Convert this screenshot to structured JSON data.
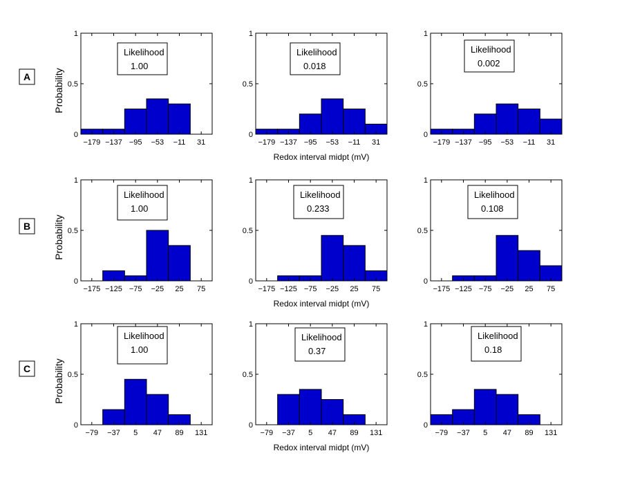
{
  "chart_data": [
    {
      "type": "bar",
      "row": "A",
      "col": 0,
      "categories": [
        "-179",
        "-137",
        "-95",
        "-53",
        "-11",
        "31"
      ],
      "x": [
        -179,
        -137,
        -95,
        -53,
        -11,
        31
      ],
      "bin_width": 42,
      "xlim": [
        -200,
        52
      ],
      "values": [
        0.05,
        0.05,
        0.25,
        0.35,
        0.3,
        0
      ],
      "likelihood_label": "Likelihood",
      "likelihood": "1.00",
      "xlabel": "",
      "ylabel": "Probability",
      "ylim": [
        0,
        1
      ],
      "yticks": [
        "0",
        "0.5",
        "1"
      ]
    },
    {
      "type": "bar",
      "row": "A",
      "col": 1,
      "categories": [
        "-179",
        "-137",
        "-95",
        "-53",
        "-11",
        "31"
      ],
      "x": [
        -179,
        -137,
        -95,
        -53,
        -11,
        31
      ],
      "bin_width": 42,
      "xlim": [
        -200,
        52
      ],
      "values": [
        0.05,
        0.05,
        0.2,
        0.35,
        0.25,
        0.1
      ],
      "likelihood_label": "Likelihood",
      "likelihood": "0.018",
      "xlabel": "Redox interval midpt (mV)",
      "ylabel": "",
      "ylim": [
        0,
        1
      ],
      "yticks": [
        "0",
        "0.5",
        "1"
      ]
    },
    {
      "type": "bar",
      "row": "A",
      "col": 2,
      "categories": [
        "-179",
        "-137",
        "-95",
        "-53",
        "-11",
        "31"
      ],
      "x": [
        -179,
        -137,
        -95,
        -53,
        -11,
        31
      ],
      "bin_width": 42,
      "xlim": [
        -200,
        52
      ],
      "values": [
        0.05,
        0.05,
        0.2,
        0.3,
        0.25,
        0.15
      ],
      "likelihood_label": "Likelihood",
      "likelihood": "0.002",
      "xlabel": "",
      "ylabel": "",
      "ylim": [
        0,
        1
      ],
      "yticks": [
        "0",
        "0.5",
        "1"
      ]
    },
    {
      "type": "bar",
      "row": "B",
      "col": 0,
      "categories": [
        "-175",
        "-125",
        "-75",
        "-25",
        "25",
        "75"
      ],
      "x": [
        -175,
        -125,
        -75,
        -25,
        25,
        75
      ],
      "bin_width": 50,
      "xlim": [
        -200,
        100
      ],
      "values": [
        0,
        0.1,
        0.05,
        0.5,
        0.35,
        0
      ],
      "likelihood_label": "Likelihood",
      "likelihood": "1.00",
      "xlabel": "",
      "ylabel": "Probability",
      "ylim": [
        0,
        1
      ],
      "yticks": [
        "0",
        "0.5",
        "1"
      ]
    },
    {
      "type": "bar",
      "row": "B",
      "col": 1,
      "categories": [
        "-175",
        "-125",
        "-75",
        "-25",
        "25",
        "75"
      ],
      "x": [
        -175,
        -125,
        -75,
        -25,
        25,
        75
      ],
      "bin_width": 50,
      "xlim": [
        -200,
        100
      ],
      "values": [
        0,
        0.05,
        0.05,
        0.45,
        0.35,
        0.1
      ],
      "likelihood_label": "Likelihood",
      "likelihood": "0.233",
      "xlabel": "Redox interval midpt (mV)",
      "ylabel": "",
      "ylim": [
        0,
        1
      ],
      "yticks": [
        "0",
        "0.5",
        "1"
      ]
    },
    {
      "type": "bar",
      "row": "B",
      "col": 2,
      "categories": [
        "-175",
        "-125",
        "-75",
        "-25",
        "25",
        "75"
      ],
      "x": [
        -175,
        -125,
        -75,
        -25,
        25,
        75
      ],
      "bin_width": 50,
      "xlim": [
        -200,
        100
      ],
      "values": [
        0,
        0.05,
        0.05,
        0.45,
        0.3,
        0.15
      ],
      "likelihood_label": "Likelihood",
      "likelihood": "0.108",
      "xlabel": "",
      "ylabel": "",
      "ylim": [
        0,
        1
      ],
      "yticks": [
        "0",
        "0.5",
        "1"
      ]
    },
    {
      "type": "bar",
      "row": "C",
      "col": 0,
      "categories": [
        "-79",
        "-37",
        "5",
        "47",
        "89",
        "131"
      ],
      "x": [
        -79,
        -37,
        5,
        47,
        89,
        131
      ],
      "bin_width": 42,
      "xlim": [
        -100,
        152
      ],
      "values": [
        0,
        0.15,
        0.45,
        0.3,
        0.1,
        0
      ],
      "likelihood_label": "Likelihood",
      "likelihood": "1.00",
      "xlabel": "",
      "ylabel": "Probability",
      "ylim": [
        0,
        1
      ],
      "yticks": [
        "0",
        "0.5",
        "1"
      ]
    },
    {
      "type": "bar",
      "row": "C",
      "col": 1,
      "categories": [
        "-79",
        "-37",
        "5",
        "47",
        "89",
        "131"
      ],
      "x": [
        -79,
        -37,
        5,
        47,
        89,
        131
      ],
      "bin_width": 42,
      "xlim": [
        -100,
        152
      ],
      "values": [
        0,
        0.3,
        0.35,
        0.25,
        0.1,
        0
      ],
      "likelihood_label": "Likelihood",
      "likelihood": "0.37",
      "xlabel": "Redox interval midpt (mV)",
      "ylabel": "",
      "ylim": [
        0,
        1
      ],
      "yticks": [
        "0",
        "0.5",
        "1"
      ]
    },
    {
      "type": "bar",
      "row": "C",
      "col": 2,
      "categories": [
        "-79",
        "-37",
        "5",
        "47",
        "89",
        "131"
      ],
      "x": [
        -79,
        -37,
        5,
        47,
        89,
        131
      ],
      "bin_width": 42,
      "xlim": [
        -100,
        152
      ],
      "values": [
        0.1,
        0.15,
        0.35,
        0.3,
        0.1,
        0
      ],
      "likelihood_label": "Likelihood",
      "likelihood": "0.18",
      "xlabel": "",
      "ylabel": "",
      "ylim": [
        0,
        1
      ],
      "yticks": [
        "0",
        "0.5",
        "1"
      ]
    }
  ],
  "row_labels": [
    "A",
    "B",
    "C"
  ],
  "colors": {
    "bar_fill": "#0000cc",
    "bar_stroke": "#000000",
    "axis": "#000000",
    "background": "#ffffff"
  }
}
